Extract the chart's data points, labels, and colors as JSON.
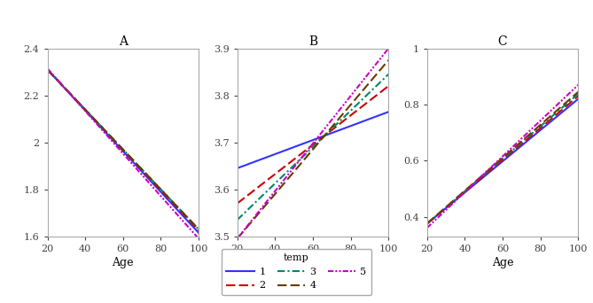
{
  "x_range": [
    20,
    100
  ],
  "panels": [
    "A",
    "B",
    "C"
  ],
  "xlabel": "Age",
  "series": [
    {
      "label": "1",
      "color": "#3333FF",
      "lw": 1.5,
      "ls_type": "solid"
    },
    {
      "label": "2",
      "color": "#CC0000",
      "lw": 1.5,
      "ls_type": "dashed"
    },
    {
      "label": "3",
      "color": "#008866",
      "lw": 1.5,
      "ls_type": "dashdot"
    },
    {
      "label": "4",
      "color": "#6B3A00",
      "lw": 1.5,
      "ls_type": "dashed"
    },
    {
      "label": "5",
      "color": "#CC00CC",
      "lw": 1.5,
      "ls_type": "dashdot2"
    }
  ],
  "A": {
    "ylim": [
      1.6,
      2.4
    ],
    "yticks": [
      1.6,
      1.8,
      2.0,
      2.2,
      2.4
    ],
    "lines": [
      [
        2.31,
        1.615
      ],
      [
        2.31,
        1.625
      ],
      [
        2.31,
        1.63
      ],
      [
        2.31,
        1.63
      ],
      [
        2.315,
        1.59
      ]
    ]
  },
  "B": {
    "ylim": [
      3.5,
      3.9
    ],
    "yticks": [
      3.5,
      3.6,
      3.7,
      3.8,
      3.9
    ],
    "lines": [
      [
        3.645,
        3.765
      ],
      [
        3.57,
        3.82
      ],
      [
        3.535,
        3.845
      ],
      [
        3.495,
        3.875
      ],
      [
        3.495,
        3.9
      ]
    ]
  },
  "C": {
    "ylim": [
      0.33,
      1.0
    ],
    "yticks": [
      0.4,
      0.6,
      0.8,
      1.0
    ],
    "lines": [
      [
        0.375,
        0.82
      ],
      [
        0.375,
        0.83
      ],
      [
        0.375,
        0.838
      ],
      [
        0.375,
        0.845
      ],
      [
        0.36,
        0.87
      ]
    ]
  },
  "legend_title": "temp",
  "background_color": "#FFFFFF",
  "spine_color": "#AAAAAA"
}
